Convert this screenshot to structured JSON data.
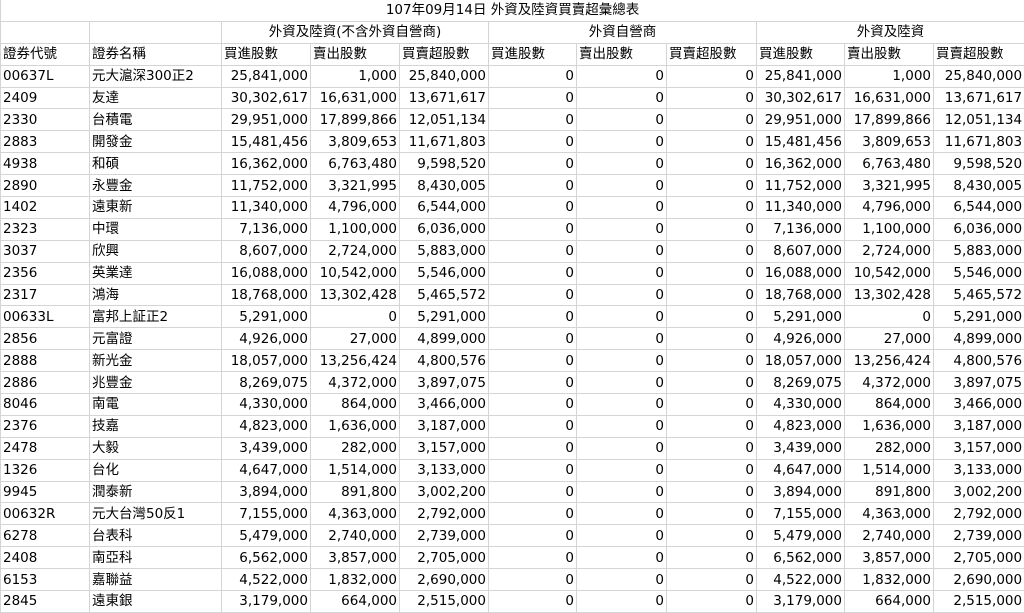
{
  "title": "107年09月14日 外資及陸資買賣超彙總表",
  "groups": [
    "外資及陸資(不含外資自營商)",
    "外資自營商",
    "外資及陸資"
  ],
  "headers": [
    "證券代號",
    "證券名稱",
    "買進股數",
    "賣出股數",
    "買賣超股數",
    "買進股數",
    "賣出股數",
    "買賣超股數",
    "買進股數",
    "賣出股數",
    "買賣超股數"
  ],
  "rows": [
    [
      "00637L",
      "元大滬深300正2",
      "25,841,000",
      "1,000",
      "25,840,000",
      "0",
      "0",
      "0",
      "25,841,000",
      "1,000",
      "25,840,000"
    ],
    [
      "2409",
      "友達",
      "30,302,617",
      "16,631,000",
      "13,671,617",
      "0",
      "0",
      "0",
      "30,302,617",
      "16,631,000",
      "13,671,617"
    ],
    [
      "2330",
      "台積電",
      "29,951,000",
      "17,899,866",
      "12,051,134",
      "0",
      "0",
      "0",
      "29,951,000",
      "17,899,866",
      "12,051,134"
    ],
    [
      "2883",
      "開發金",
      "15,481,456",
      "3,809,653",
      "11,671,803",
      "0",
      "0",
      "0",
      "15,481,456",
      "3,809,653",
      "11,671,803"
    ],
    [
      "4938",
      "和碩",
      "16,362,000",
      "6,763,480",
      "9,598,520",
      "0",
      "0",
      "0",
      "16,362,000",
      "6,763,480",
      "9,598,520"
    ],
    [
      "2890",
      "永豐金",
      "11,752,000",
      "3,321,995",
      "8,430,005",
      "0",
      "0",
      "0",
      "11,752,000",
      "3,321,995",
      "8,430,005"
    ],
    [
      "1402",
      "遠東新",
      "11,340,000",
      "4,796,000",
      "6,544,000",
      "0",
      "0",
      "0",
      "11,340,000",
      "4,796,000",
      "6,544,000"
    ],
    [
      "2323",
      "中環",
      "7,136,000",
      "1,100,000",
      "6,036,000",
      "0",
      "0",
      "0",
      "7,136,000",
      "1,100,000",
      "6,036,000"
    ],
    [
      "3037",
      "欣興",
      "8,607,000",
      "2,724,000",
      "5,883,000",
      "0",
      "0",
      "0",
      "8,607,000",
      "2,724,000",
      "5,883,000"
    ],
    [
      "2356",
      "英業達",
      "16,088,000",
      "10,542,000",
      "5,546,000",
      "0",
      "0",
      "0",
      "16,088,000",
      "10,542,000",
      "5,546,000"
    ],
    [
      "2317",
      "鴻海",
      "18,768,000",
      "13,302,428",
      "5,465,572",
      "0",
      "0",
      "0",
      "18,768,000",
      "13,302,428",
      "5,465,572"
    ],
    [
      "00633L",
      "富邦上証正2",
      "5,291,000",
      "0",
      "5,291,000",
      "0",
      "0",
      "0",
      "5,291,000",
      "0",
      "5,291,000"
    ],
    [
      "2856",
      "元富證",
      "4,926,000",
      "27,000",
      "4,899,000",
      "0",
      "0",
      "0",
      "4,926,000",
      "27,000",
      "4,899,000"
    ],
    [
      "2888",
      "新光金",
      "18,057,000",
      "13,256,424",
      "4,800,576",
      "0",
      "0",
      "0",
      "18,057,000",
      "13,256,424",
      "4,800,576"
    ],
    [
      "2886",
      "兆豐金",
      "8,269,075",
      "4,372,000",
      "3,897,075",
      "0",
      "0",
      "0",
      "8,269,075",
      "4,372,000",
      "3,897,075"
    ],
    [
      "8046",
      "南電",
      "4,330,000",
      "864,000",
      "3,466,000",
      "0",
      "0",
      "0",
      "4,330,000",
      "864,000",
      "3,466,000"
    ],
    [
      "2376",
      "技嘉",
      "4,823,000",
      "1,636,000",
      "3,187,000",
      "0",
      "0",
      "0",
      "4,823,000",
      "1,636,000",
      "3,187,000"
    ],
    [
      "2478",
      "大毅",
      "3,439,000",
      "282,000",
      "3,157,000",
      "0",
      "0",
      "0",
      "3,439,000",
      "282,000",
      "3,157,000"
    ],
    [
      "1326",
      "台化",
      "4,647,000",
      "1,514,000",
      "3,133,000",
      "0",
      "0",
      "0",
      "4,647,000",
      "1,514,000",
      "3,133,000"
    ],
    [
      "9945",
      "潤泰新",
      "3,894,000",
      "891,800",
      "3,002,200",
      "0",
      "0",
      "0",
      "3,894,000",
      "891,800",
      "3,002,200"
    ],
    [
      "00632R",
      "元大台灣50反1",
      "7,155,000",
      "4,363,000",
      "2,792,000",
      "0",
      "0",
      "0",
      "7,155,000",
      "4,363,000",
      "2,792,000"
    ],
    [
      "6278",
      "台表科",
      "5,479,000",
      "2,740,000",
      "2,739,000",
      "0",
      "0",
      "0",
      "5,479,000",
      "2,740,000",
      "2,739,000"
    ],
    [
      "2408",
      "南亞科",
      "6,562,000",
      "3,857,000",
      "2,705,000",
      "0",
      "0",
      "0",
      "6,562,000",
      "3,857,000",
      "2,705,000"
    ],
    [
      "6153",
      "嘉聯益",
      "4,522,000",
      "1,832,000",
      "2,690,000",
      "0",
      "0",
      "0",
      "4,522,000",
      "1,832,000",
      "2,690,000"
    ],
    [
      "2845",
      "遠東銀",
      "3,179,000",
      "664,000",
      "2,515,000",
      "0",
      "0",
      "0",
      "3,179,000",
      "664,000",
      "2,515,000"
    ]
  ]
}
